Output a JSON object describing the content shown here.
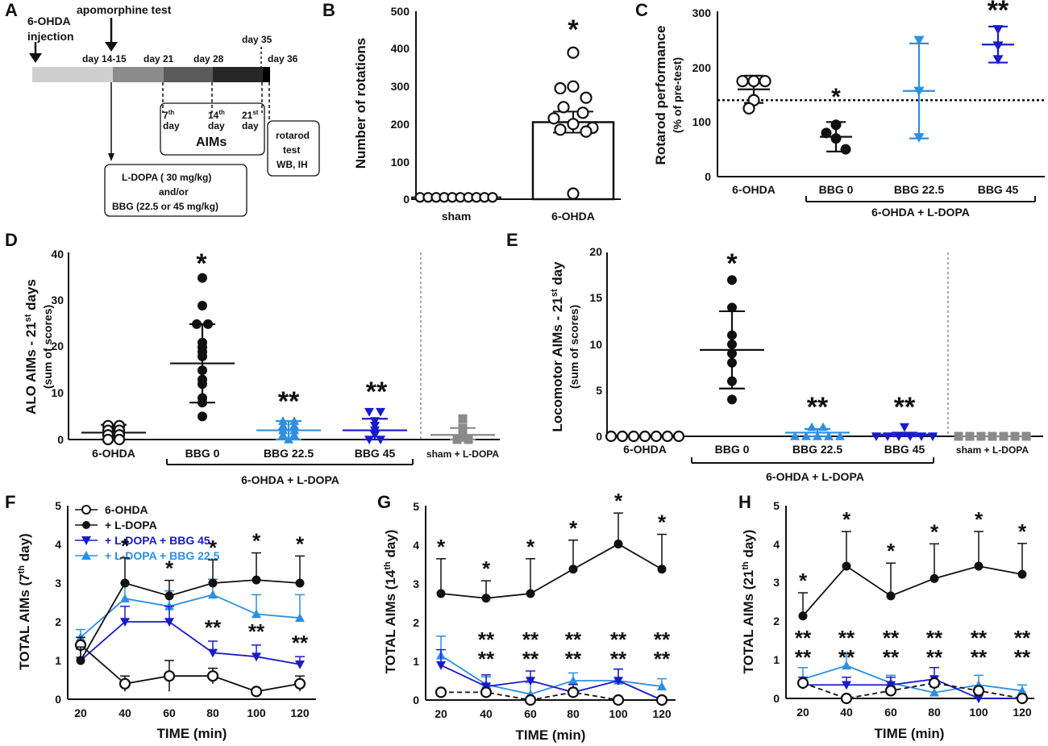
{
  "colors": {
    "black": "#111111",
    "dark_blue": "#1a1acc",
    "light_blue": "#2e8fe0",
    "grey": "#8a8a8a"
  },
  "panels": {
    "A": {
      "label": "A",
      "injection": [
        "6-OHDA",
        "injection"
      ],
      "apomorphine": "apomorphine test",
      "days": [
        "day 14-15",
        "day 21",
        "day 28",
        "day 35",
        "day 36"
      ],
      "aims_days": [
        {
          "num": "7",
          "sup": "th"
        },
        {
          "num": "14",
          "sup": "th"
        },
        {
          "num": "21",
          "sup": "st"
        }
      ],
      "day_word": "day",
      "aims_label": "AIMs",
      "rotarod": [
        "rotarod",
        "test",
        "WB, IH"
      ],
      "treatment": [
        "L-DOPA ( 30 mg/kg)",
        "and/or",
        "BBG (22.5 or 45 mg/kg)"
      ]
    },
    "B": {
      "label": "B",
      "ylabel": "Number of rotations",
      "yticks": [
        "0",
        "100",
        "200",
        "300",
        "400",
        "500"
      ],
      "categories": [
        "sham",
        "6-OHDA"
      ],
      "star": "*"
    },
    "C": {
      "label": "C",
      "ylabel": "Rotarod performance",
      "ylabel2": "(% of pre-test)",
      "yticks": [
        "0",
        "100",
        "200",
        "300"
      ],
      "categories": [
        "6-OHDA",
        "BBG 0",
        "BBG 22.5",
        "BBG 45"
      ],
      "group_label": "6-OHDA + L-DOPA",
      "stars": [
        "*",
        "**"
      ]
    },
    "D": {
      "label": "D",
      "ylabel_main": "ALO AIMs - 21",
      "ylabel_sup": "st",
      "ylabel_end": " days",
      "ylabel2": "(sum of scores)",
      "yticks": [
        "0",
        "10",
        "20",
        "30",
        "40"
      ],
      "categories": [
        "6-OHDA",
        "BBG 0",
        "BBG 22.5",
        "BBG 45",
        "sham + L-DOPA"
      ],
      "group_label": "6-OHDA + L-DOPA",
      "stars": [
        "*",
        "**",
        "**"
      ]
    },
    "E": {
      "label": "E",
      "ylabel_main": "Locomotor AIMs - 21",
      "ylabel_sup": "st",
      "ylabel_end": " day",
      "ylabel2": "(sum of scores)",
      "yticks": [
        "0",
        "5",
        "10",
        "15",
        "20"
      ],
      "categories": [
        "6-OHDA",
        "BBG 0",
        "BBG 22.5",
        "BBG 45",
        "sham + L-DOPA"
      ],
      "group_label": "6-OHDA + L-DOPA",
      "stars": [
        "*",
        "**",
        "**"
      ]
    },
    "F": {
      "label": "F",
      "ylabel_main": "TOTAL AIMs (7",
      "ylabel_sup": "th",
      "ylabel_end": " day)",
      "xlabel": "TIME (min)",
      "yticks": [
        "0",
        "1",
        "2",
        "3",
        "4",
        "5"
      ],
      "xticks": [
        "20",
        "40",
        "60",
        "80",
        "100",
        "120"
      ]
    },
    "G": {
      "label": "G",
      "ylabel_main": "TOTAL AIMs (14",
      "ylabel_sup": "th",
      "ylabel_end": " day)",
      "xlabel": "TIME (min)",
      "yticks": [
        "0",
        "1",
        "2",
        "3",
        "4",
        "5"
      ],
      "xticks": [
        "20",
        "40",
        "60",
        "80",
        "100",
        "120"
      ]
    },
    "H": {
      "label": "H",
      "ylabel_main": "TOTAL AIMs (21",
      "ylabel_sup": "th",
      "ylabel_end": " day)",
      "xlabel": "TIME (min)",
      "yticks": [
        "0",
        "1",
        "2",
        "3",
        "4",
        "5"
      ],
      "xticks": [
        "20",
        "40",
        "60",
        "80",
        "100",
        "120"
      ]
    }
  },
  "legend": [
    "6-OHDA",
    "+ L-DOPA",
    "+ L-DOPA + BBG 45",
    "+ L-DOPA + BBG 22.5"
  ],
  "chart_data": [
    {
      "panel": "B",
      "type": "scatter",
      "title": "",
      "ylabel": "Number of rotations",
      "ylim": [
        0,
        500
      ],
      "categories": [
        "sham",
        "6-OHDA"
      ],
      "series": [
        {
          "name": "sham",
          "mean": 5,
          "sem": 0,
          "points": [
            5,
            5,
            5,
            5,
            5,
            5,
            5,
            5,
            5,
            5
          ]
        },
        {
          "name": "6-OHDA",
          "mean": 205,
          "sem": 28,
          "points": [
            390,
            300,
            295,
            270,
            245,
            230,
            215,
            200,
            190,
            185,
            180,
            15
          ]
        }
      ]
    },
    {
      "panel": "C",
      "type": "scatter",
      "ylabel": "Rotarod performance (% of pre-test)",
      "ylim": [
        0,
        300
      ],
      "reference_line": 140,
      "categories": [
        "6-OHDA",
        "BBG 0",
        "BBG 22.5",
        "BBG 45"
      ],
      "series": [
        {
          "name": "6-OHDA",
          "mean": 160,
          "sd": 25,
          "points": [
            175,
            175,
            165,
            140,
            125
          ]
        },
        {
          "name": "BBG 0",
          "mean": 73,
          "sd": 27,
          "points": [
            95,
            80,
            70,
            50
          ]
        },
        {
          "name": "BBG 22.5",
          "mean": 157,
          "sd": 87,
          "points": [
            250,
            157,
            72
          ]
        },
        {
          "name": "BBG 45",
          "mean": 242,
          "sd": 33,
          "points": [
            270,
            240,
            215
          ]
        }
      ]
    },
    {
      "panel": "D",
      "type": "scatter",
      "ylabel": "ALO AIMs - 21st days (sum of scores)",
      "ylim": [
        0,
        40
      ],
      "categories": [
        "6-OHDA",
        "BBG 0",
        "BBG 22.5",
        "BBG 45",
        "sham + L-DOPA"
      ],
      "series": [
        {
          "name": "6-OHDA",
          "mean": 1.5,
          "sd": 1.7,
          "points": [
            3,
            3,
            2,
            2,
            1,
            1,
            0,
            0
          ]
        },
        {
          "name": "BBG 0",
          "mean": 16.5,
          "sd": 8.5,
          "points": [
            35,
            29,
            25,
            25,
            21,
            20,
            19,
            18,
            15,
            13,
            12,
            9,
            8,
            5
          ]
        },
        {
          "name": "BBG 22.5",
          "mean": 2,
          "sd": 2,
          "points": [
            4,
            4,
            3,
            3,
            2,
            2,
            1,
            1,
            0
          ]
        },
        {
          "name": "BBG 45",
          "mean": 2,
          "sd": 2.5,
          "points": [
            6,
            6,
            4,
            3,
            2,
            1,
            0,
            0
          ]
        },
        {
          "name": "sham + L-DOPA",
          "mean": 1,
          "sd": 1.5,
          "points": [
            4.5,
            2.5,
            1,
            0.5,
            0,
            0
          ]
        }
      ]
    },
    {
      "panel": "E",
      "type": "scatter",
      "ylabel": "Locomotor AIMs - 21st day (sum of scores)",
      "ylim": [
        0,
        20
      ],
      "categories": [
        "6-OHDA",
        "BBG 0",
        "BBG 22.5",
        "BBG 45",
        "sham + L-DOPA"
      ],
      "series": [
        {
          "name": "6-OHDA",
          "mean": 0,
          "sd": 0,
          "points": [
            0,
            0,
            0,
            0,
            0,
            0,
            0
          ]
        },
        {
          "name": "BBG 0",
          "mean": 9.4,
          "sd": 4.2,
          "points": [
            17,
            14,
            11,
            10,
            9,
            8,
            6,
            4
          ]
        },
        {
          "name": "BBG 22.5",
          "mean": 0.4,
          "sd": 0.4,
          "points": [
            1,
            1,
            0,
            0,
            0,
            0,
            0
          ]
        },
        {
          "name": "BBG 45",
          "mean": 0.2,
          "sd": 0.2,
          "points": [
            1,
            0,
            0,
            0,
            0,
            0,
            0
          ]
        },
        {
          "name": "sham + L-DOPA",
          "mean": 0,
          "sd": 0,
          "points": [
            0,
            0,
            0,
            0,
            0,
            0,
            0
          ]
        }
      ]
    },
    {
      "panel": "F",
      "type": "line",
      "xlabel": "TIME (min)",
      "ylabel": "TOTAL AIMs (7th day)",
      "x": [
        20,
        40,
        60,
        80,
        100,
        120
      ],
      "ylim": [
        0,
        5
      ],
      "series": [
        {
          "name": "6-OHDA",
          "values": [
            1.4,
            0.4,
            0.6,
            0.6,
            0.2,
            0.4
          ],
          "err": [
            0.2,
            0.2,
            0.4,
            0.2,
            0,
            0.2
          ]
        },
        {
          "name": "+ L-DOPA",
          "values": [
            1.0,
            3.0,
            2.67,
            3.0,
            3.08,
            3.0
          ],
          "err": [
            0.35,
            0.65,
            0.4,
            0.6,
            0.7,
            0.7
          ]
        },
        {
          "name": "+ L-DOPA + BBG 45",
          "values": [
            1.0,
            2.0,
            2.0,
            1.2,
            1.1,
            0.9
          ],
          "err": [
            0.3,
            0.4,
            0.4,
            0.3,
            0.3,
            0.2
          ]
        },
        {
          "name": "+ L-DOPA + BBG 22.5",
          "values": [
            1.6,
            2.6,
            2.4,
            2.7,
            2.2,
            2.1
          ],
          "err": [
            0.2,
            0.4,
            0.4,
            0.4,
            0.5,
            0.6
          ]
        }
      ],
      "stars": [
        "",
        "*",
        "*",
        "*",
        "*",
        "*"
      ],
      "stars2": [
        "",
        "",
        "",
        "**",
        "**",
        "**"
      ]
    },
    {
      "panel": "G",
      "type": "line",
      "xlabel": "TIME (min)",
      "ylabel": "TOTAL AIMs (14th day)",
      "x": [
        20,
        40,
        60,
        80,
        100,
        120
      ],
      "ylim": [
        0,
        5
      ],
      "series": [
        {
          "name": "6-OHDA",
          "values": [
            0.2,
            0.2,
            0.0,
            0.2,
            0.0,
            0.0
          ],
          "err": [
            0,
            0,
            0,
            0,
            0,
            0
          ]
        },
        {
          "name": "+ L-DOPA",
          "values": [
            2.75,
            2.63,
            2.75,
            3.38,
            4.03,
            3.38
          ],
          "err": [
            0.9,
            0.45,
            0.9,
            0.75,
            0.8,
            0.9
          ]
        },
        {
          "name": "+ L-DOPA + BBG 45",
          "values": [
            0.9,
            0.35,
            0.5,
            0.2,
            0.5,
            0.0
          ],
          "err": [
            0.4,
            0.3,
            0.25,
            0.2,
            0.3,
            0
          ]
        },
        {
          "name": "+ L-DOPA + BBG 22.5",
          "values": [
            1.15,
            0.4,
            0.15,
            0.5,
            0.5,
            0.35
          ],
          "err": [
            0.5,
            0.2,
            0.3,
            0.2,
            0.3,
            0.2
          ]
        }
      ],
      "stars": [
        "*",
        "*",
        "*",
        "*",
        "*",
        "*"
      ],
      "stars2": [
        "",
        "**",
        "**",
        "**",
        "**",
        "**"
      ],
      "stars3": [
        "",
        "**",
        "**",
        "**",
        "**",
        "**"
      ]
    },
    {
      "panel": "H",
      "type": "line",
      "xlabel": "TIME (min)",
      "ylabel": "TOTAL AIMs (21th day)",
      "x": [
        20,
        40,
        60,
        80,
        100,
        120
      ],
      "ylim": [
        0,
        5
      ],
      "series": [
        {
          "name": "6-OHDA",
          "values": [
            0.4,
            0.0,
            0.2,
            0.4,
            0.2,
            0.0
          ],
          "err": [
            0,
            0,
            0,
            0,
            0,
            0
          ]
        },
        {
          "name": "+ L-DOPA",
          "values": [
            2.14,
            3.43,
            2.66,
            3.11,
            3.43,
            3.22
          ],
          "err": [
            0.6,
            0.9,
            0.85,
            0.9,
            0.9,
            0.8
          ]
        },
        {
          "name": "+ L-DOPA + BBG 45",
          "values": [
            0.35,
            0.35,
            0.35,
            0.5,
            0.0,
            0.0
          ],
          "err": [
            0.2,
            0.2,
            0.2,
            0.3,
            0,
            0
          ]
        },
        {
          "name": "+ L-DOPA + BBG 22.5",
          "values": [
            0.5,
            0.85,
            0.4,
            0.15,
            0.35,
            0.2
          ],
          "err": [
            0.3,
            0.3,
            0.2,
            0.15,
            0.25,
            0.15
          ]
        }
      ],
      "stars": [
        "*",
        "*",
        "*",
        "*",
        "*",
        "*"
      ],
      "stars2": [
        "**",
        "**",
        "**",
        "**",
        "**",
        "**"
      ],
      "stars3": [
        "**",
        "**",
        "**",
        "**",
        "**",
        "**"
      ]
    }
  ]
}
